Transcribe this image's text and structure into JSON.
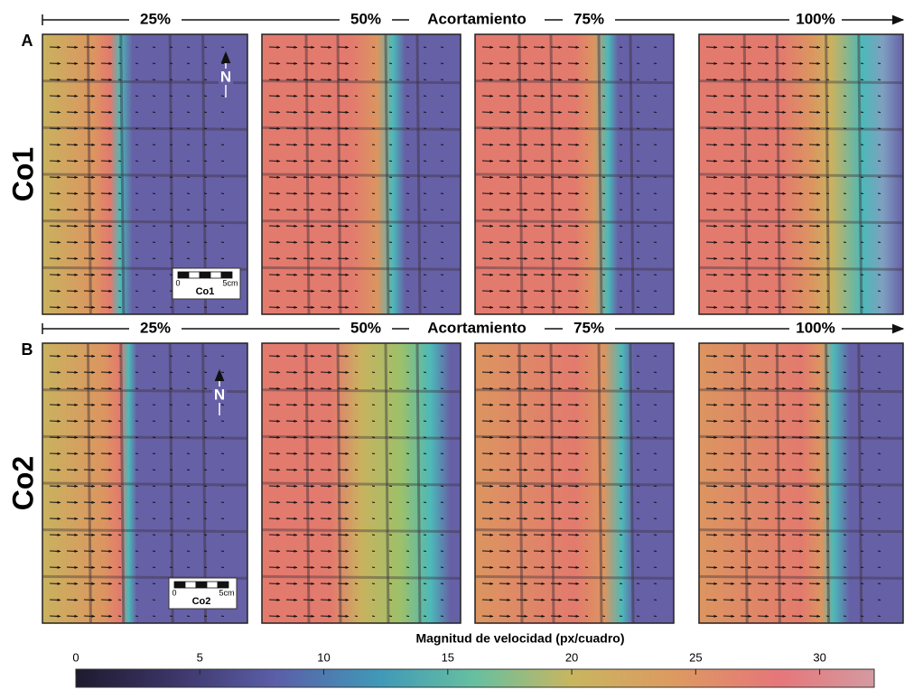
{
  "rows": [
    {
      "label": "A",
      "name": "Co1",
      "header": [
        "25%",
        "50%",
        "Acortamiento",
        "75%",
        "100%"
      ],
      "scale": {
        "start": "0",
        "end": "5cm",
        "name": "Co1"
      },
      "north": "N"
    },
    {
      "label": "B",
      "name": "Co2",
      "header": [
        "25%",
        "50%",
        "Acortamiento",
        "75%",
        "100%"
      ],
      "scale": {
        "start": "0",
        "end": "5cm",
        "name": "Co2"
      },
      "north": "N"
    }
  ],
  "colorbar": {
    "title": "Magnitud de velocidad (px/cuadro)",
    "lim": [
      0,
      32.2
    ],
    "ticks": [
      0,
      5,
      10,
      15,
      20,
      25,
      30
    ]
  }
}
